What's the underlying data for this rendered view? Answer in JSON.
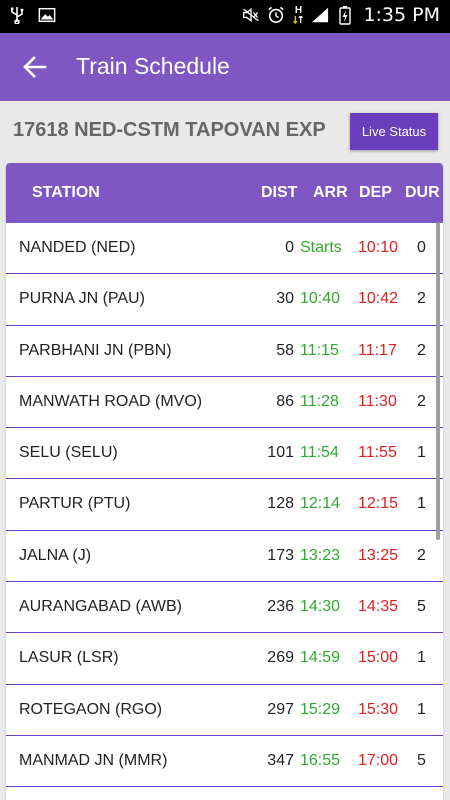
{
  "status_bar": {
    "time": "1:35 PM",
    "icons": [
      "usb-icon",
      "image-icon",
      "mute-icon",
      "alarm-icon",
      "data-arrows-icon",
      "signal-icon",
      "battery-charging-icon"
    ],
    "network_label": "H"
  },
  "app_bar": {
    "title": "Train Schedule",
    "back_icon": "back-arrow-icon"
  },
  "train": {
    "title": "17618  NED-CSTM TAPOVAN EXP",
    "live_status_label": "Live Status"
  },
  "table": {
    "headers": {
      "station": "STATION",
      "dist": "DIST",
      "arr": "ARR",
      "dep": "DEP",
      "dur": "DUR"
    },
    "rows": [
      {
        "station": "NANDED (NED)",
        "dist": "0",
        "arr": "Starts",
        "dep": "10:10",
        "dur": "0"
      },
      {
        "station": "PURNA JN (PAU)",
        "dist": "30",
        "arr": "10:40",
        "dep": "10:42",
        "dur": "2"
      },
      {
        "station": "PARBHANI JN (PBN)",
        "dist": "58",
        "arr": "11:15",
        "dep": "11:17",
        "dur": "2"
      },
      {
        "station": "MANWATH ROAD (MVO)",
        "dist": "86",
        "arr": "11:28",
        "dep": "11:30",
        "dur": "2"
      },
      {
        "station": "SELU (SELU)",
        "dist": "101",
        "arr": "11:54",
        "dep": "11:55",
        "dur": "1"
      },
      {
        "station": "PARTUR (PTU)",
        "dist": "128",
        "arr": "12:14",
        "dep": "12:15",
        "dur": "1"
      },
      {
        "station": "JALNA (J)",
        "dist": "173",
        "arr": "13:23",
        "dep": "13:25",
        "dur": "2"
      },
      {
        "station": "AURANGABAD (AWB)",
        "dist": "236",
        "arr": "14:30",
        "dep": "14:35",
        "dur": "5"
      },
      {
        "station": "LASUR (LSR)",
        "dist": "269",
        "arr": "14:59",
        "dep": "15:00",
        "dur": "1"
      },
      {
        "station": "ROTEGAON (RGO)",
        "dist": "297",
        "arr": "15:29",
        "dep": "15:30",
        "dur": "1"
      },
      {
        "station": "MANMAD JN (MMR)",
        "dist": "347",
        "arr": "16:55",
        "dep": "17:00",
        "dur": "5"
      }
    ]
  },
  "colors": {
    "accent": "#7e57c2",
    "button": "#6a3fbd",
    "arrival": "#2eaa2e",
    "departure": "#e02020"
  }
}
